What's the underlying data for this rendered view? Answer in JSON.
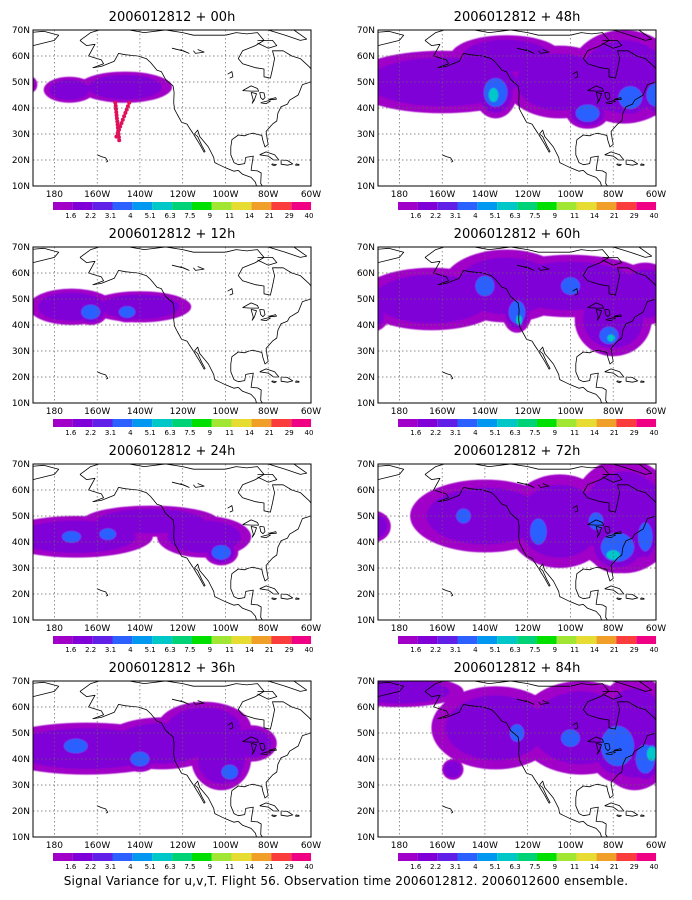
{
  "caption": "Signal Variance for u,v,T. Flight 56. Observation time 2006012812. 2006012600 ensemble.",
  "map_axes": {
    "lat_ticks": [
      "70N",
      "60N",
      "50N",
      "40N",
      "30N",
      "20N",
      "10N"
    ],
    "lon_ticks": [
      "180",
      "160W",
      "140W",
      "120W",
      "100W",
      "80W",
      "60W"
    ]
  },
  "colorbar": {
    "labels": [
      "1.6",
      "2.2",
      "3.1",
      "4",
      "5.1",
      "6.3",
      "7.5",
      "9",
      "11",
      "14",
      "21",
      "29",
      "40"
    ],
    "colors": [
      "#a000c8",
      "#8000d8",
      "#6020e8",
      "#2c60ff",
      "#0098f0",
      "#00c8c8",
      "#00d278",
      "#00e000",
      "#a0e632",
      "#e6dc32",
      "#f0a028",
      "#fa3c3c",
      "#f00082"
    ]
  },
  "panels": [
    {
      "title": "2006012812 + 00h",
      "col": 0,
      "row": 0,
      "flight_track": true,
      "blobs": [
        {
          "lon": -173,
          "lat": 47,
          "sx": 12,
          "sy": 5,
          "l": 2
        },
        {
          "lon": -147,
          "lat": 48,
          "sx": 22,
          "sy": 6,
          "l": 2
        },
        {
          "lon": -191,
          "lat": 49,
          "sx": 3,
          "sy": 3,
          "l": 1
        }
      ]
    },
    {
      "title": "2006012812 + 12h",
      "col": 0,
      "row": 1,
      "blobs": [
        {
          "lon": -172,
          "lat": 47,
          "sx": 20,
          "sy": 7,
          "l": 2
        },
        {
          "lon": -163,
          "lat": 45,
          "sx": 8,
          "sy": 5,
          "l": 3
        },
        {
          "lon": -140,
          "lat": 47,
          "sx": 24,
          "sy": 6,
          "l": 2
        },
        {
          "lon": -146,
          "lat": 45,
          "sx": 7,
          "sy": 4,
          "l": 3
        }
      ]
    },
    {
      "title": "2006012812 + 24h",
      "col": 0,
      "row": 2,
      "blobs": [
        {
          "lon": -170,
          "lat": 42,
          "sx": 36,
          "sy": 8,
          "l": 2
        },
        {
          "lon": -135,
          "lat": 48,
          "sx": 32,
          "sy": 6,
          "l": 2
        },
        {
          "lon": -110,
          "lat": 42,
          "sx": 22,
          "sy": 8,
          "l": 2
        },
        {
          "lon": -102,
          "lat": 36,
          "sx": 8,
          "sy": 5,
          "l": 3
        },
        {
          "lon": -172,
          "lat": 42,
          "sx": 8,
          "sy": 4,
          "l": 3
        },
        {
          "lon": -155,
          "lat": 43,
          "sx": 7,
          "sy": 4,
          "l": 3
        }
      ]
    },
    {
      "title": "2006012812 + 36h",
      "col": 0,
      "row": 3,
      "blobs": [
        {
          "lon": -165,
          "lat": 44,
          "sx": 46,
          "sy": 10,
          "l": 2
        },
        {
          "lon": -130,
          "lat": 46,
          "sx": 28,
          "sy": 10,
          "l": 2
        },
        {
          "lon": -110,
          "lat": 52,
          "sx": 22,
          "sy": 10,
          "l": 2
        },
        {
          "lon": -102,
          "lat": 40,
          "sx": 14,
          "sy": 12,
          "l": 2
        },
        {
          "lon": -88,
          "lat": 46,
          "sx": 12,
          "sy": 7,
          "l": 2
        },
        {
          "lon": -98,
          "lat": 35,
          "sx": 7,
          "sy": 5,
          "l": 3
        },
        {
          "lon": -140,
          "lat": 40,
          "sx": 8,
          "sy": 5,
          "l": 3
        },
        {
          "lon": -170,
          "lat": 45,
          "sx": 10,
          "sy": 5,
          "l": 3
        }
      ]
    },
    {
      "title": "2006012812 + 48h",
      "col": 1,
      "row": 0,
      "blobs": [
        {
          "lon": -160,
          "lat": 50,
          "sx": 45,
          "sy": 12,
          "l": 2
        },
        {
          "lon": -130,
          "lat": 60,
          "sx": 26,
          "sy": 8,
          "l": 2
        },
        {
          "lon": -105,
          "lat": 50,
          "sx": 26,
          "sy": 14,
          "l": 2
        },
        {
          "lon": -75,
          "lat": 52,
          "sx": 26,
          "sy": 18,
          "l": 2
        },
        {
          "lon": -135,
          "lat": 46,
          "sx": 10,
          "sy": 10,
          "l": 3
        },
        {
          "lon": -136,
          "lat": 45,
          "sx": 5,
          "sy": 6,
          "l": 4
        },
        {
          "lon": -92,
          "lat": 38,
          "sx": 10,
          "sy": 6,
          "l": 3
        },
        {
          "lon": -72,
          "lat": 44,
          "sx": 10,
          "sy": 8,
          "l": 3
        },
        {
          "lon": -60,
          "lat": 45,
          "sx": 8,
          "sy": 8,
          "l": 3
        }
      ]
    },
    {
      "title": "2006012812 + 60h",
      "col": 1,
      "row": 1,
      "blobs": [
        {
          "lon": -165,
          "lat": 50,
          "sx": 35,
          "sy": 12,
          "l": 2
        },
        {
          "lon": -130,
          "lat": 55,
          "sx": 30,
          "sy": 14,
          "l": 2
        },
        {
          "lon": -100,
          "lat": 55,
          "sx": 40,
          "sy": 12,
          "l": 2
        },
        {
          "lon": -80,
          "lat": 42,
          "sx": 18,
          "sy": 14,
          "l": 2
        },
        {
          "lon": -65,
          "lat": 52,
          "sx": 15,
          "sy": 12,
          "l": 2
        },
        {
          "lon": -195,
          "lat": 43,
          "sx": 10,
          "sy": 6,
          "l": 2
        },
        {
          "lon": -140,
          "lat": 55,
          "sx": 8,
          "sy": 7,
          "l": 3
        },
        {
          "lon": -125,
          "lat": 45,
          "sx": 7,
          "sy": 8,
          "l": 3
        },
        {
          "lon": -124,
          "lat": 42,
          "sx": 3,
          "sy": 4,
          "l": 4
        },
        {
          "lon": -82,
          "lat": 36,
          "sx": 8,
          "sy": 6,
          "l": 3
        },
        {
          "lon": -81,
          "lat": 35,
          "sx": 4,
          "sy": 3,
          "l": 4
        },
        {
          "lon": -100,
          "lat": 55,
          "sx": 8,
          "sy": 6,
          "l": 3
        }
      ]
    },
    {
      "title": "2006012812 + 72h",
      "col": 1,
      "row": 2,
      "blobs": [
        {
          "lon": -140,
          "lat": 50,
          "sx": 35,
          "sy": 14,
          "l": 2
        },
        {
          "lon": -105,
          "lat": 48,
          "sx": 25,
          "sy": 18,
          "l": 2
        },
        {
          "lon": -75,
          "lat": 50,
          "sx": 25,
          "sy": 22,
          "l": 2
        },
        {
          "lon": -192,
          "lat": 46,
          "sx": 8,
          "sy": 6,
          "l": 2
        },
        {
          "lon": -115,
          "lat": 44,
          "sx": 7,
          "sy": 9,
          "l": 3
        },
        {
          "lon": -78,
          "lat": 38,
          "sx": 14,
          "sy": 10,
          "l": 3
        },
        {
          "lon": -80,
          "lat": 35,
          "sx": 7,
          "sy": 4,
          "l": 4
        },
        {
          "lon": -65,
          "lat": 42,
          "sx": 6,
          "sy": 10,
          "l": 3
        },
        {
          "lon": -88,
          "lat": 48,
          "sx": 6,
          "sy": 6,
          "l": 3
        },
        {
          "lon": -150,
          "lat": 50,
          "sx": 6,
          "sy": 5,
          "l": 3
        }
      ]
    },
    {
      "title": "2006012812 + 84h",
      "col": 1,
      "row": 3,
      "blobs": [
        {
          "lon": -180,
          "lat": 66,
          "sx": 30,
          "sy": 6,
          "l": 2
        },
        {
          "lon": -135,
          "lat": 52,
          "sx": 30,
          "sy": 16,
          "l": 2
        },
        {
          "lon": -95,
          "lat": 52,
          "sx": 30,
          "sy": 18,
          "l": 2
        },
        {
          "lon": -70,
          "lat": 50,
          "sx": 20,
          "sy": 22,
          "l": 2
        },
        {
          "lon": -155,
          "lat": 36,
          "sx": 5,
          "sy": 4,
          "l": 2
        },
        {
          "lon": -78,
          "lat": 45,
          "sx": 14,
          "sy": 14,
          "l": 3
        },
        {
          "lon": -65,
          "lat": 40,
          "sx": 8,
          "sy": 10,
          "l": 3
        },
        {
          "lon": -62,
          "lat": 42,
          "sx": 5,
          "sy": 6,
          "l": 4
        },
        {
          "lon": -100,
          "lat": 48,
          "sx": 8,
          "sy": 6,
          "l": 3
        },
        {
          "lon": -125,
          "lat": 50,
          "sx": 6,
          "sy": 6,
          "l": 3
        }
      ]
    }
  ]
}
